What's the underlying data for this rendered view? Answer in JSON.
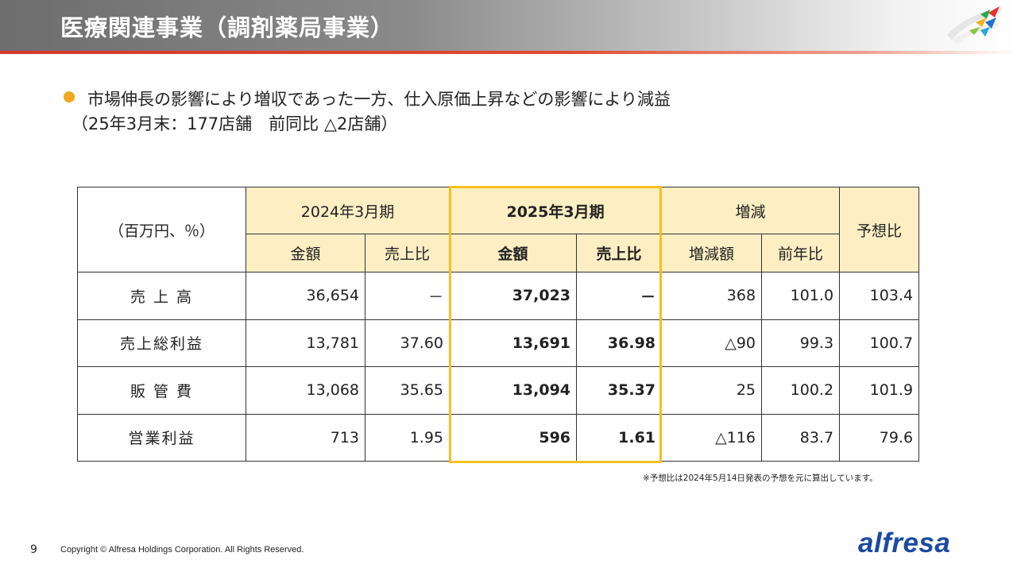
{
  "header": {
    "title": "医療関連事業（調剤薬局事業）"
  },
  "summary": {
    "line1": "市場伸長の影響により増収であった一方、仕入原価上昇などの影響により減益",
    "line2": "（25年3月末：177店舗　前同比 △2店舗）"
  },
  "table": {
    "unit_label": "（百万円、％）",
    "groups": {
      "fy2024": "2024年3月期",
      "fy2025": "2025年3月期",
      "change": "増減",
      "forecast_ratio": "予想比"
    },
    "subheaders": {
      "amount_2024": "金額",
      "ratio_2024": "売上比",
      "amount_2025": "金額",
      "ratio_2025": "売上比",
      "change_amount": "増減額",
      "yoy": "前年比"
    },
    "rows": [
      {
        "label": "売 上 高",
        "amount_2024": "36,654",
        "ratio_2024": "－",
        "amount_2025": "37,023",
        "ratio_2025": "－",
        "change_amount": "368",
        "yoy": "101.0",
        "forecast_ratio": "103.4"
      },
      {
        "label": "売上総利益",
        "amount_2024": "13,781",
        "ratio_2024": "37.60",
        "amount_2025": "13,691",
        "ratio_2025": "36.98",
        "change_amount": "△90",
        "yoy": "99.3",
        "forecast_ratio": "100.7"
      },
      {
        "label": "販 管 費",
        "amount_2024": "13,068",
        "ratio_2024": "35.65",
        "amount_2025": "13,094",
        "ratio_2025": "35.37",
        "change_amount": "25",
        "yoy": "100.2",
        "forecast_ratio": "101.9"
      },
      {
        "label": "営業利益",
        "amount_2024": "713",
        "ratio_2024": "1.95",
        "amount_2025": "596",
        "ratio_2025": "1.61",
        "change_amount": "△116",
        "yoy": "83.7",
        "forecast_ratio": "79.6"
      }
    ]
  },
  "note": "※予想比は2024年5月14日発表の予想を元に算出しています。",
  "footer": {
    "page_number": "9",
    "copyright": "Copyright © Alfresa Holdings Corporation. All Rights Reserved.",
    "logo_text": "alfresa"
  },
  "colors": {
    "accent_bullet": "#f0a81e",
    "highlight_border": "#f5c020",
    "header_cell_bg": "#fdeec4",
    "logo_blue": "#1b4aa0",
    "header_red_line": "#d9372b"
  },
  "icons": {
    "bullet": "circle-bullet-icon",
    "brand": "alfresa-brand-mark-icon"
  }
}
